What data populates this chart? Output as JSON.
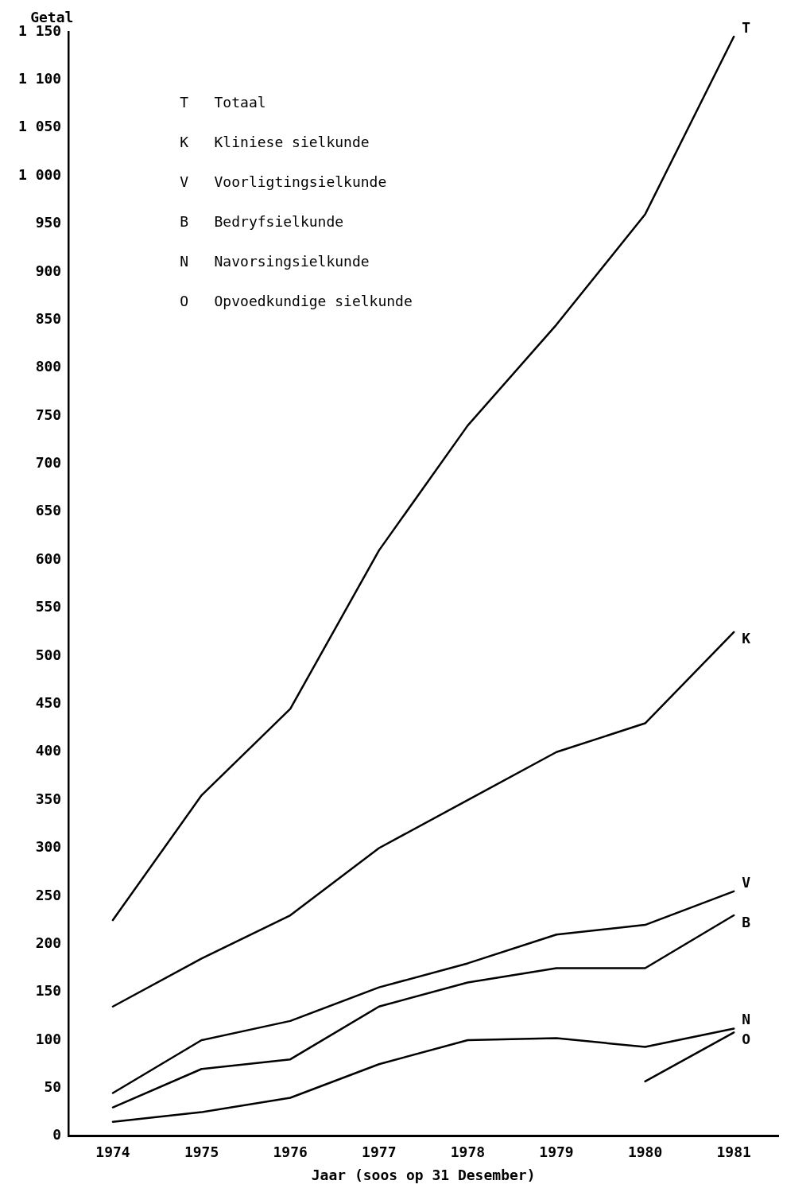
{
  "chart_data": {
    "type": "line",
    "xlabel": "Jaar (soos op 31 Desember)",
    "ylabel": "Getal",
    "categories": [
      "1974",
      "1975",
      "1976",
      "1977",
      "1978",
      "1979",
      "1980",
      "1981"
    ],
    "series": [
      {
        "name": "T",
        "color": "#000000",
        "values": [
          225,
          355,
          445,
          610,
          740,
          845,
          960,
          1145
        ]
      },
      {
        "name": "K",
        "color": "#000000",
        "values": [
          135,
          185,
          230,
          300,
          350,
          400,
          430,
          525
        ]
      },
      {
        "name": "V",
        "color": "#000000",
        "values": [
          45,
          100,
          120,
          155,
          180,
          210,
          220,
          255
        ]
      },
      {
        "name": "B",
        "color": "#000000",
        "values": [
          30,
          70,
          80,
          135,
          160,
          175,
          175,
          230
        ]
      },
      {
        "name": "N",
        "color": "#000000",
        "values": [
          15,
          25,
          40,
          75,
          100,
          102,
          93,
          112
        ]
      },
      {
        "name": "O",
        "color": "#000000",
        "values": [
          null,
          null,
          null,
          null,
          null,
          null,
          57,
          108
        ]
      }
    ],
    "annotations": [
      "T   Totaal",
      "K   Kliniese sielkunde",
      "V   Voorligtingsielkunde",
      "B   Bedryfsielkunde",
      "N   Navorsingsielkunde",
      "O   Opvoedkundige sielkunde"
    ],
    "ylim": [
      0,
      1150
    ],
    "yticks": [
      0,
      50,
      100,
      150,
      200,
      250,
      300,
      350,
      400,
      450,
      500,
      550,
      600,
      650,
      700,
      750,
      800,
      850,
      900,
      950,
      {
        "value": 1000,
        "label": "1 000"
      },
      {
        "value": 1050,
        "label": "1 050"
      },
      {
        "value": 1100,
        "label": "1 100"
      },
      {
        "value": 1150,
        "label": "1 150"
      }
    ],
    "grid": false,
    "legend": false,
    "marker": "none",
    "line_style": "solid"
  }
}
